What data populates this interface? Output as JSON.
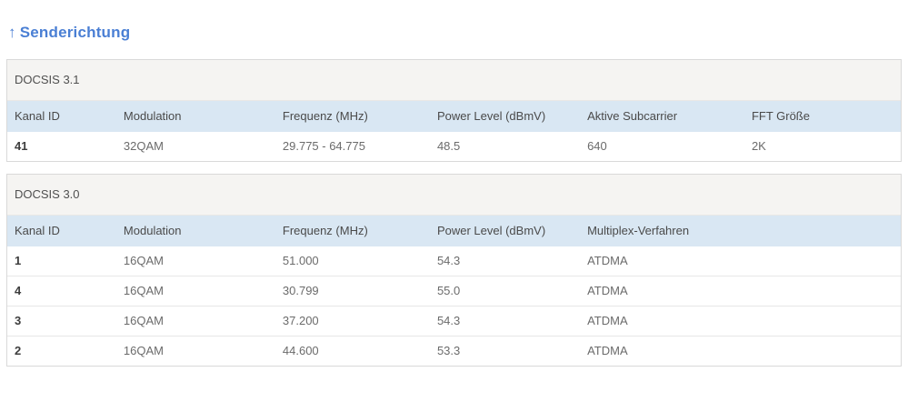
{
  "page": {
    "title": "Senderichtung",
    "title_arrow": "↑"
  },
  "colors": {
    "title_blue": "#4a7fd4",
    "table_header_blue": "#d9e7f3",
    "section_header_gray": "#f5f4f2",
    "border": "#d9d9d9"
  },
  "tables": [
    {
      "section": "DOCSIS 3.1",
      "columns": [
        "Kanal ID",
        "Modulation",
        "Frequenz (MHz)",
        "Power Level (dBmV)",
        "Aktive Subcarrier",
        "FFT Größe"
      ],
      "rows": [
        [
          "41",
          "32QAM",
          "29.775 - 64.775",
          "48.5",
          "640",
          "2K"
        ]
      ]
    },
    {
      "section": "DOCSIS 3.0",
      "columns": [
        "Kanal ID",
        "Modulation",
        "Frequenz (MHz)",
        "Power Level (dBmV)",
        "Multiplex-Verfahren"
      ],
      "rows": [
        [
          "1",
          "16QAM",
          "51.000",
          "54.3",
          "ATDMA"
        ],
        [
          "4",
          "16QAM",
          "30.799",
          "55.0",
          "ATDMA"
        ],
        [
          "3",
          "16QAM",
          "37.200",
          "54.3",
          "ATDMA"
        ],
        [
          "2",
          "16QAM",
          "44.600",
          "53.3",
          "ATDMA"
        ]
      ]
    }
  ]
}
